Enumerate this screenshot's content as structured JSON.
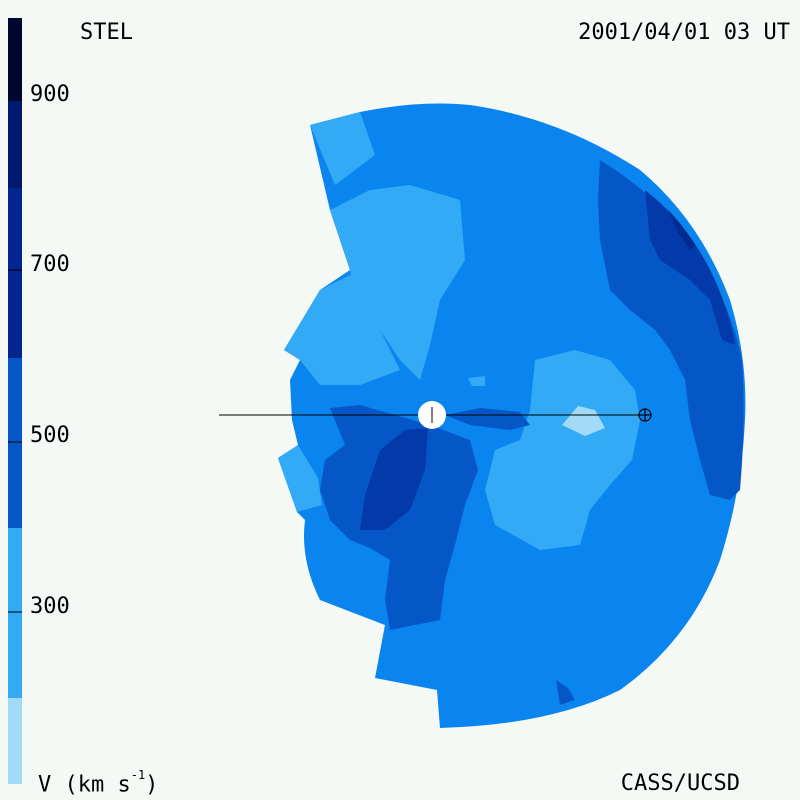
{
  "header": {
    "site_label": "STEL",
    "timestamp": "2001/04/01 03 UT"
  },
  "footer": {
    "units_text": "V (km s",
    "units_exp": "-1",
    "units_close": ")",
    "credit": "CASS/UCSD"
  },
  "colorbar": {
    "tick_labels": [
      "900",
      "700",
      "500",
      "300"
    ],
    "tick_values": [
      900,
      700,
      500,
      300
    ],
    "range": [
      100,
      1000
    ],
    "bands": [
      {
        "from": 100,
        "to": 200,
        "color": "#8ed0f5"
      },
      {
        "from": 200,
        "to": 400,
        "color": "#33aaf5"
      },
      {
        "from": 400,
        "to": 600,
        "color": "#0a84ee"
      },
      {
        "from": 500,
        "to": 600,
        "color": "#0557c8"
      },
      {
        "from": 600,
        "to": 700,
        "color": "#0339a8"
      },
      {
        "from": 700,
        "to": 800,
        "color": "#022590"
      },
      {
        "from": 800,
        "to": 900,
        "color": "#011870"
      },
      {
        "from": 900,
        "to": 1000,
        "color": "#000830"
      }
    ]
  },
  "colors": {
    "background": "#f5f9f5",
    "light": "#33aaf5",
    "lightest": "#a3daf7",
    "mid": "#0a84ee",
    "dark": "#0557c8",
    "darker": "#0339a8",
    "darkest": "#012a8f"
  }
}
